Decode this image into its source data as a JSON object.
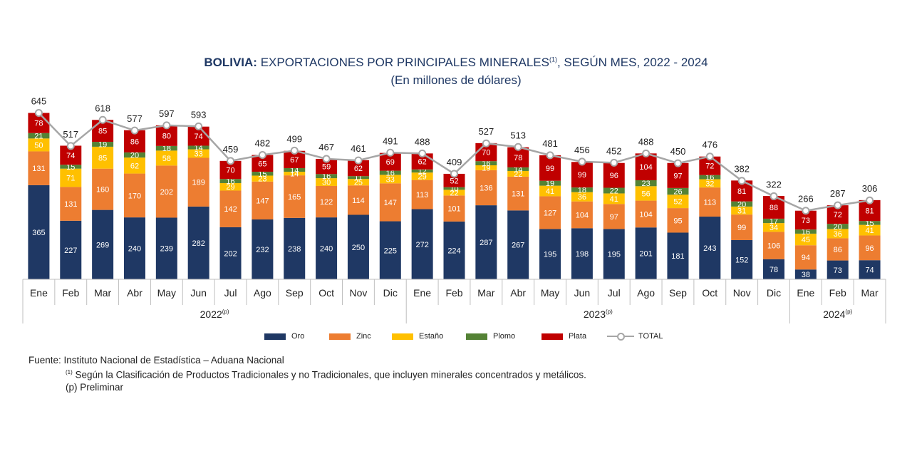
{
  "chart_data": {
    "type": "bar",
    "stacked": true,
    "title_bold": "BOLIVIA:",
    "title": "EXPORTACIONES POR PRINCIPALES MINERALES",
    "title_note": "(1)",
    "title_tail": ", SEGÚN MES, 2022 - 2024",
    "subtitle": "(En millones de dólares)",
    "categories": [
      "Ene",
      "Feb",
      "Mar",
      "Abr",
      "May",
      "Jun",
      "Jul",
      "Ago",
      "Sep",
      "Oct",
      "Nov",
      "Dic",
      "Ene",
      "Feb",
      "Mar",
      "Abr",
      "May",
      "Jun",
      "Jul",
      "Ago",
      "Sep",
      "Oct",
      "Nov",
      "Dic",
      "Ene",
      "Feb",
      "Mar"
    ],
    "year_groups": [
      {
        "label": "2022",
        "note": "(p)",
        "count": 12
      },
      {
        "label": "2023",
        "note": "(p)",
        "count": 12
      },
      {
        "label": "2024",
        "note": "(p)",
        "count": 3
      }
    ],
    "series": [
      {
        "name": "Oro",
        "color": "#1f3864",
        "values": [
          365,
          227,
          269,
          240,
          239,
          282,
          202,
          232,
          238,
          240,
          250,
          225,
          272,
          224,
          287,
          267,
          195,
          198,
          195,
          201,
          181,
          243,
          152,
          78,
          38,
          73,
          74
        ]
      },
      {
        "name": "Zinc",
        "color": "#ed7d31",
        "values": [
          131,
          131,
          160,
          170,
          202,
          189,
          142,
          147,
          165,
          122,
          114,
          147,
          113,
          101,
          136,
          131,
          127,
          104,
          97,
          104,
          95,
          113,
          99,
          106,
          94,
          86,
          96
        ]
      },
      {
        "name": "Estaño",
        "color": "#ffc000",
        "values": [
          50,
          71,
          85,
          62,
          58,
          33,
          29,
          23,
          14,
          30,
          25,
          33,
          29,
          22,
          19,
          22,
          41,
          36,
          41,
          56,
          52,
          32,
          31,
          34,
          45,
          36,
          41
        ]
      },
      {
        "name": "Plomo",
        "color": "#548235",
        "values": [
          21,
          15,
          19,
          20,
          18,
          14,
          16,
          15,
          14,
          16,
          11,
          16,
          12,
          10,
          16,
          14,
          19,
          18,
          22,
          23,
          26,
          16,
          20,
          17,
          16,
          20,
          15
        ]
      },
      {
        "name": "Plata",
        "color": "#c00000",
        "values": [
          78,
          74,
          85,
          86,
          80,
          74,
          70,
          65,
          67,
          59,
          62,
          69,
          62,
          52,
          70,
          78,
          99,
          99,
          96,
          104,
          97,
          72,
          81,
          88,
          73,
          72,
          81
        ]
      }
    ],
    "total": {
      "name": "TOTAL",
      "color": "#a6a6a6",
      "values": [
        645,
        517,
        618,
        577,
        597,
        593,
        459,
        482,
        499,
        467,
        461,
        491,
        488,
        409,
        527,
        513,
        481,
        456,
        452,
        488,
        450,
        476,
        382,
        322,
        266,
        287,
        306
      ]
    },
    "legend_position": "bottom",
    "grid": false
  },
  "source": {
    "line1": "Fuente: Instituto Nacional de Estadística – Aduana Nacional",
    "note_mark": "(1)",
    "line2": " Según la Clasificación de Productos Tradicionales y no Tradicionales, que incluyen minerales concentrados y metálicos.",
    "line3": "(p) Preliminar"
  }
}
